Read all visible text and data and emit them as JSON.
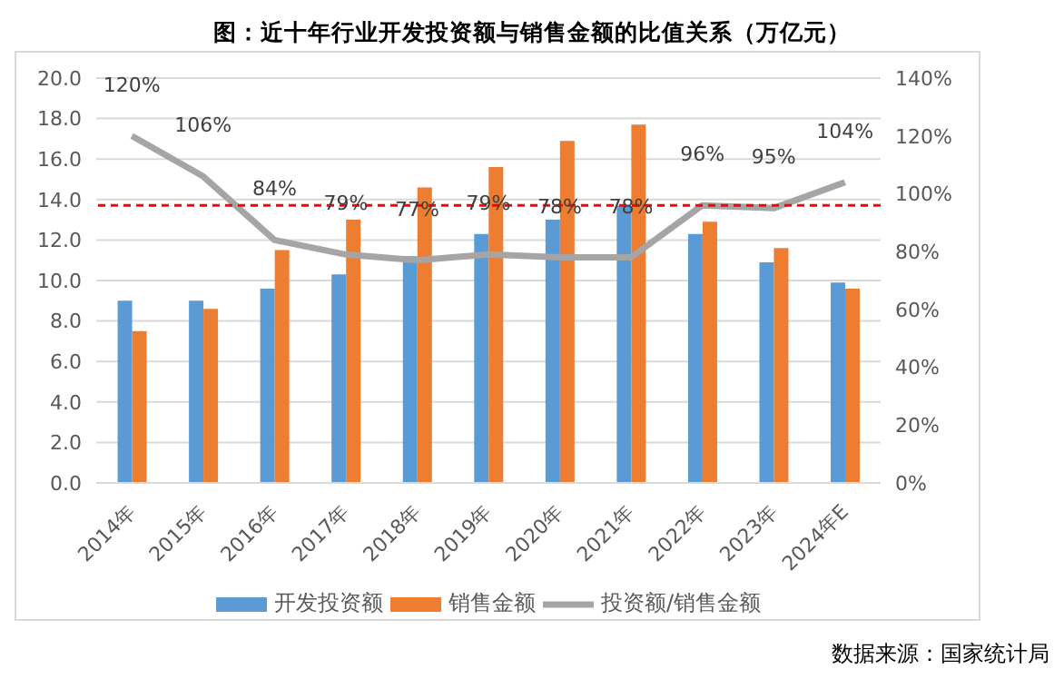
{
  "chart_data": {
    "type": "bar",
    "title": "图：近十年行业开发投资额与销售金额的比值关系（万亿元）",
    "categories": [
      "2014年",
      "2015年",
      "2016年",
      "2017年",
      "2018年",
      "2019年",
      "2020年",
      "2021年",
      "2022年",
      "2023年",
      "2024年E"
    ],
    "series": [
      {
        "name": "开发投资额",
        "color": "#5b9bd5",
        "values": [
          9.0,
          9.0,
          9.6,
          10.3,
          11.2,
          12.3,
          13.0,
          13.7,
          12.3,
          10.9,
          9.9
        ]
      },
      {
        "name": "销售金额",
        "color": "#ed7d31",
        "values": [
          7.5,
          8.6,
          11.5,
          13.0,
          14.6,
          15.6,
          16.9,
          17.7,
          12.9,
          11.6,
          9.6
        ]
      },
      {
        "name": "投资额/销售金额",
        "type": "line",
        "axis": "y2",
        "color": "#a5a5a5",
        "values": [
          120,
          106,
          84,
          79,
          77,
          79,
          78,
          78,
          96,
          95,
          104
        ],
        "value_labels": [
          "120%",
          "106%",
          "84%",
          "79%",
          "77%",
          "79%",
          "78%",
          "78%",
          "96%",
          "95%",
          "104%"
        ]
      }
    ],
    "ylim": [
      0,
      20
    ],
    "yticks": [
      {
        "value": 0,
        "label": "0.0"
      },
      {
        "value": 2,
        "label": "2.0"
      },
      {
        "value": 4,
        "label": "4.0"
      },
      {
        "value": 6,
        "label": "6.0"
      },
      {
        "value": 8,
        "label": "8.0"
      },
      {
        "value": 10,
        "label": "10.0"
      },
      {
        "value": 12,
        "label": "12.0"
      },
      {
        "value": 14,
        "label": "14.0"
      },
      {
        "value": 16,
        "label": "16.0"
      },
      {
        "value": 18,
        "label": "18.0"
      },
      {
        "value": 20,
        "label": "20.0"
      }
    ],
    "y2lim": [
      0,
      140
    ],
    "y2ticks": [
      {
        "value": 0,
        "label": "0%"
      },
      {
        "value": 20,
        "label": "20%"
      },
      {
        "value": 40,
        "label": "40%"
      },
      {
        "value": 60,
        "label": "60%"
      },
      {
        "value": 80,
        "label": "80%"
      },
      {
        "value": 100,
        "label": "100%"
      },
      {
        "value": 120,
        "label": "120%"
      },
      {
        "value": 140,
        "label": "140%"
      }
    ],
    "ref_lines": [
      {
        "axis": "y2",
        "value": 96,
        "color": "#ff0000",
        "line_style": "dashed"
      }
    ],
    "grid": "y",
    "legend": "bottom",
    "marker": "none",
    "annotations": [
      "数据来源：国家统计局"
    ]
  }
}
